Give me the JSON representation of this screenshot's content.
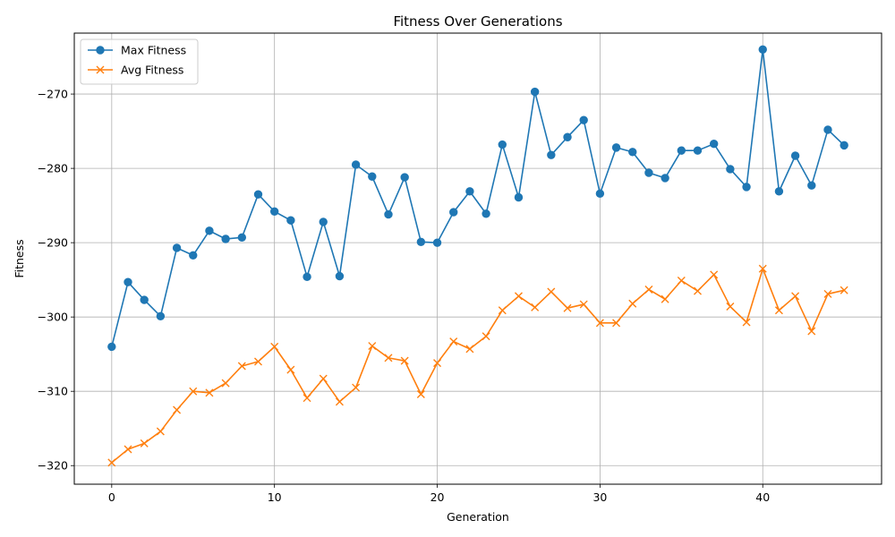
{
  "chart_data": {
    "type": "line",
    "title": "Fitness Over Generations",
    "xlabel": "Generation",
    "ylabel": "Fitness",
    "xlim": [
      -2.3,
      47.3
    ],
    "ylim": [
      -322.5,
      -261.8
    ],
    "xticks": [
      0,
      10,
      20,
      30,
      40
    ],
    "yticks": [
      -320,
      -310,
      -300,
      -290,
      -280,
      -270
    ],
    "grid": true,
    "legend_position": "top-left",
    "x": [
      0,
      1,
      2,
      3,
      4,
      5,
      6,
      7,
      8,
      9,
      10,
      11,
      12,
      13,
      14,
      15,
      16,
      17,
      18,
      19,
      20,
      21,
      22,
      23,
      24,
      25,
      26,
      27,
      28,
      29,
      30,
      31,
      32,
      33,
      34,
      35,
      36,
      37,
      38,
      39,
      40,
      41,
      42,
      43,
      44,
      45
    ],
    "series": [
      {
        "name": "Max Fitness",
        "color": "#1f77b4",
        "marker": "circle",
        "values": [
          -304.0,
          -295.3,
          -297.7,
          -299.9,
          -290.7,
          -291.7,
          -288.4,
          -289.5,
          -289.3,
          -283.5,
          -285.8,
          -287.0,
          -294.6,
          -287.2,
          -294.5,
          -279.5,
          -281.1,
          -286.2,
          -281.2,
          -289.9,
          -290.0,
          -285.9,
          -283.1,
          -286.1,
          -276.8,
          -283.9,
          -269.7,
          -278.2,
          -275.8,
          -273.5,
          -283.4,
          -277.2,
          -277.8,
          -280.6,
          -281.3,
          -277.6,
          -277.6,
          -276.7,
          -280.1,
          -282.5,
          -264.0,
          -283.1,
          -278.3,
          -282.3,
          -274.8,
          -276.9
        ]
      },
      {
        "name": "Avg Fitness",
        "color": "#ff7f0e",
        "marker": "x",
        "values": [
          -319.6,
          -317.8,
          -317.0,
          -315.4,
          -312.5,
          -310.0,
          -310.2,
          -308.9,
          -306.6,
          -306.0,
          -304.0,
          -307.1,
          -310.9,
          -308.3,
          -311.4,
          -309.5,
          -303.9,
          -305.5,
          -305.9,
          -310.4,
          -306.2,
          -303.3,
          -304.3,
          -302.6,
          -299.1,
          -297.2,
          -298.7,
          -296.6,
          -298.8,
          -298.3,
          -300.8,
          -300.8,
          -298.2,
          -296.3,
          -297.6,
          -295.1,
          -296.5,
          -294.3,
          -298.6,
          -300.7,
          -293.5,
          -299.1,
          -297.2,
          -301.9,
          -296.9,
          -296.4
        ]
      }
    ]
  }
}
